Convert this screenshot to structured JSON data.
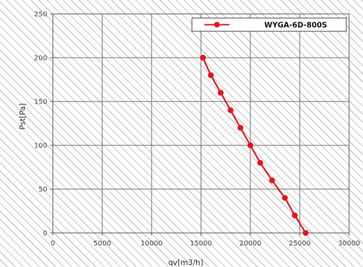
{
  "chart_data": {
    "type": "line",
    "xlabel": "qv[m3/h]",
    "ylabel": "Pst[Pa]",
    "xlim": [
      0,
      30000
    ],
    "ylim": [
      0,
      250
    ],
    "xticks": [
      0,
      5000,
      10000,
      15000,
      20000,
      25000,
      30000
    ],
    "yticks": [
      0,
      50,
      100,
      150,
      200,
      250
    ],
    "xtick_labels": [
      "0",
      "5000",
      "10000",
      "15000",
      "20000",
      "25000",
      "30000"
    ],
    "ytick_labels": [
      "0",
      "50",
      "100",
      "150",
      "200",
      "250"
    ],
    "grid": true,
    "legend_position": "top-right",
    "series": [
      {
        "name": "WYGA-6D-800S",
        "color": "#e8141c",
        "marker": "circle",
        "x": [
          15200,
          16000,
          17000,
          18000,
          19000,
          20000,
          21000,
          22200,
          23500,
          24500,
          25600
        ],
        "y": [
          200,
          180,
          160,
          140,
          120,
          100,
          80,
          60,
          40,
          20,
          0
        ]
      }
    ]
  }
}
